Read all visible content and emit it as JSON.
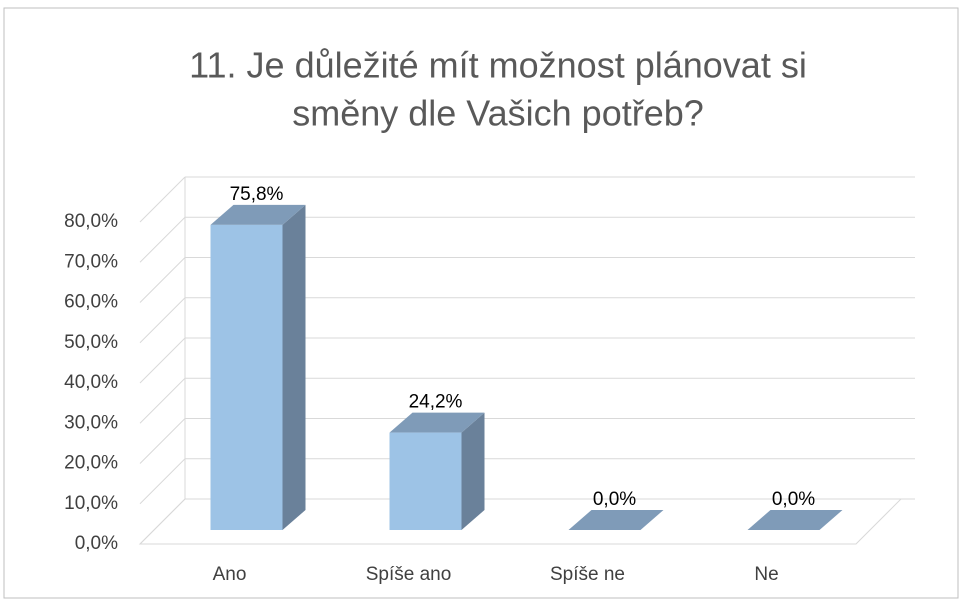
{
  "chart_data": {
    "type": "bar3d",
    "title": "11. Je důležité mít možnost plánovat si směny dle Vašich potřeb?",
    "categories": [
      "Ano",
      "Spíše ano",
      "Spíše ne",
      "Ne"
    ],
    "values": [
      75.8,
      24.2,
      0,
      0
    ],
    "value_labels": [
      "75,8%",
      "24,2%",
      "0,0%",
      "0,0%"
    ],
    "color": "#9dc3e6",
    "ylim": [
      0,
      80
    ],
    "yticks": [
      {
        "value": 0,
        "label": "0,0%"
      },
      {
        "value": 10,
        "label": "10,0%"
      },
      {
        "value": 20,
        "label": "20,0%"
      },
      {
        "value": 30,
        "label": "30,0%"
      },
      {
        "value": 40,
        "label": "40,0%"
      },
      {
        "value": 50,
        "label": "50,0%"
      },
      {
        "value": 60,
        "label": "60,0%"
      },
      {
        "value": 70,
        "label": "70,0%"
      },
      {
        "value": 80,
        "label": "80,0%"
      }
    ],
    "grid": true
  }
}
